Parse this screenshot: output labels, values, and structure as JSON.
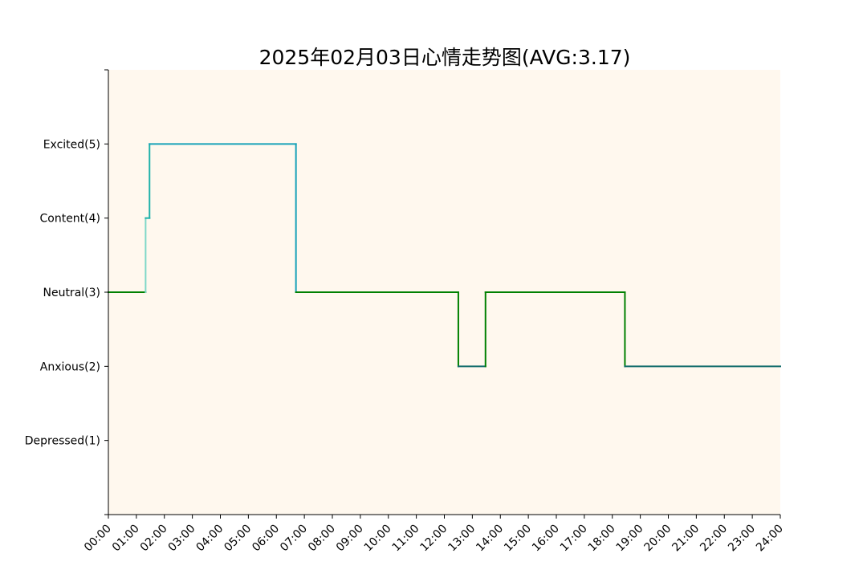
{
  "chart_data": {
    "type": "line",
    "subtype": "step",
    "title": "2025年02月03日心情走势图(AVG:3.17)",
    "xlabel": "",
    "ylabel": "",
    "xlim": [
      0,
      24
    ],
    "ylim": [
      0,
      6
    ],
    "x_ticks": [
      "00:00",
      "01:00",
      "02:00",
      "03:00",
      "04:00",
      "05:00",
      "06:00",
      "07:00",
      "08:00",
      "09:00",
      "10:00",
      "11:00",
      "12:00",
      "13:00",
      "14:00",
      "15:00",
      "16:00",
      "17:00",
      "18:00",
      "19:00",
      "20:00",
      "21:00",
      "22:00",
      "23:00",
      "24:00"
    ],
    "y_ticks": [
      {
        "value": 1,
        "label": "Depressed(1)"
      },
      {
        "value": 2,
        "label": "Anxious(2)"
      },
      {
        "value": 3,
        "label": "Neutral(3)"
      },
      {
        "value": 4,
        "label": "Content(4)"
      },
      {
        "value": 5,
        "label": "Excited(5)"
      }
    ],
    "background_color": "#fff8ee",
    "grid": false,
    "segments": [
      {
        "x": [
          0.0,
          1.33
        ],
        "y": [
          3,
          3
        ],
        "color": "#008000"
      },
      {
        "x": [
          1.33,
          1.33
        ],
        "y": [
          3,
          4
        ],
        "color": "#7fd8c8"
      },
      {
        "x": [
          1.33,
          1.47
        ],
        "y": [
          4,
          4
        ],
        "color": "#20b2aa"
      },
      {
        "x": [
          1.47,
          1.47
        ],
        "y": [
          4,
          5
        ],
        "color": "#20b2aa"
      },
      {
        "x": [
          1.47,
          6.7
        ],
        "y": [
          5,
          5
        ],
        "color": "#17a2b8"
      },
      {
        "x": [
          6.7,
          6.7
        ],
        "y": [
          5,
          3
        ],
        "color": "#17a2b8"
      },
      {
        "x": [
          6.7,
          12.5
        ],
        "y": [
          3,
          3
        ],
        "color": "#008000"
      },
      {
        "x": [
          12.5,
          12.5
        ],
        "y": [
          3,
          2
        ],
        "color": "#008000"
      },
      {
        "x": [
          12.5,
          13.47
        ],
        "y": [
          2,
          2
        ],
        "color": "#106b6b"
      },
      {
        "x": [
          13.47,
          13.47
        ],
        "y": [
          2,
          3
        ],
        "color": "#008000"
      },
      {
        "x": [
          13.47,
          18.45
        ],
        "y": [
          3,
          3
        ],
        "color": "#008000"
      },
      {
        "x": [
          18.45,
          18.45
        ],
        "y": [
          3,
          2
        ],
        "color": "#008000"
      },
      {
        "x": [
          18.45,
          24.0
        ],
        "y": [
          2,
          2
        ],
        "color": "#106b6b"
      }
    ]
  }
}
